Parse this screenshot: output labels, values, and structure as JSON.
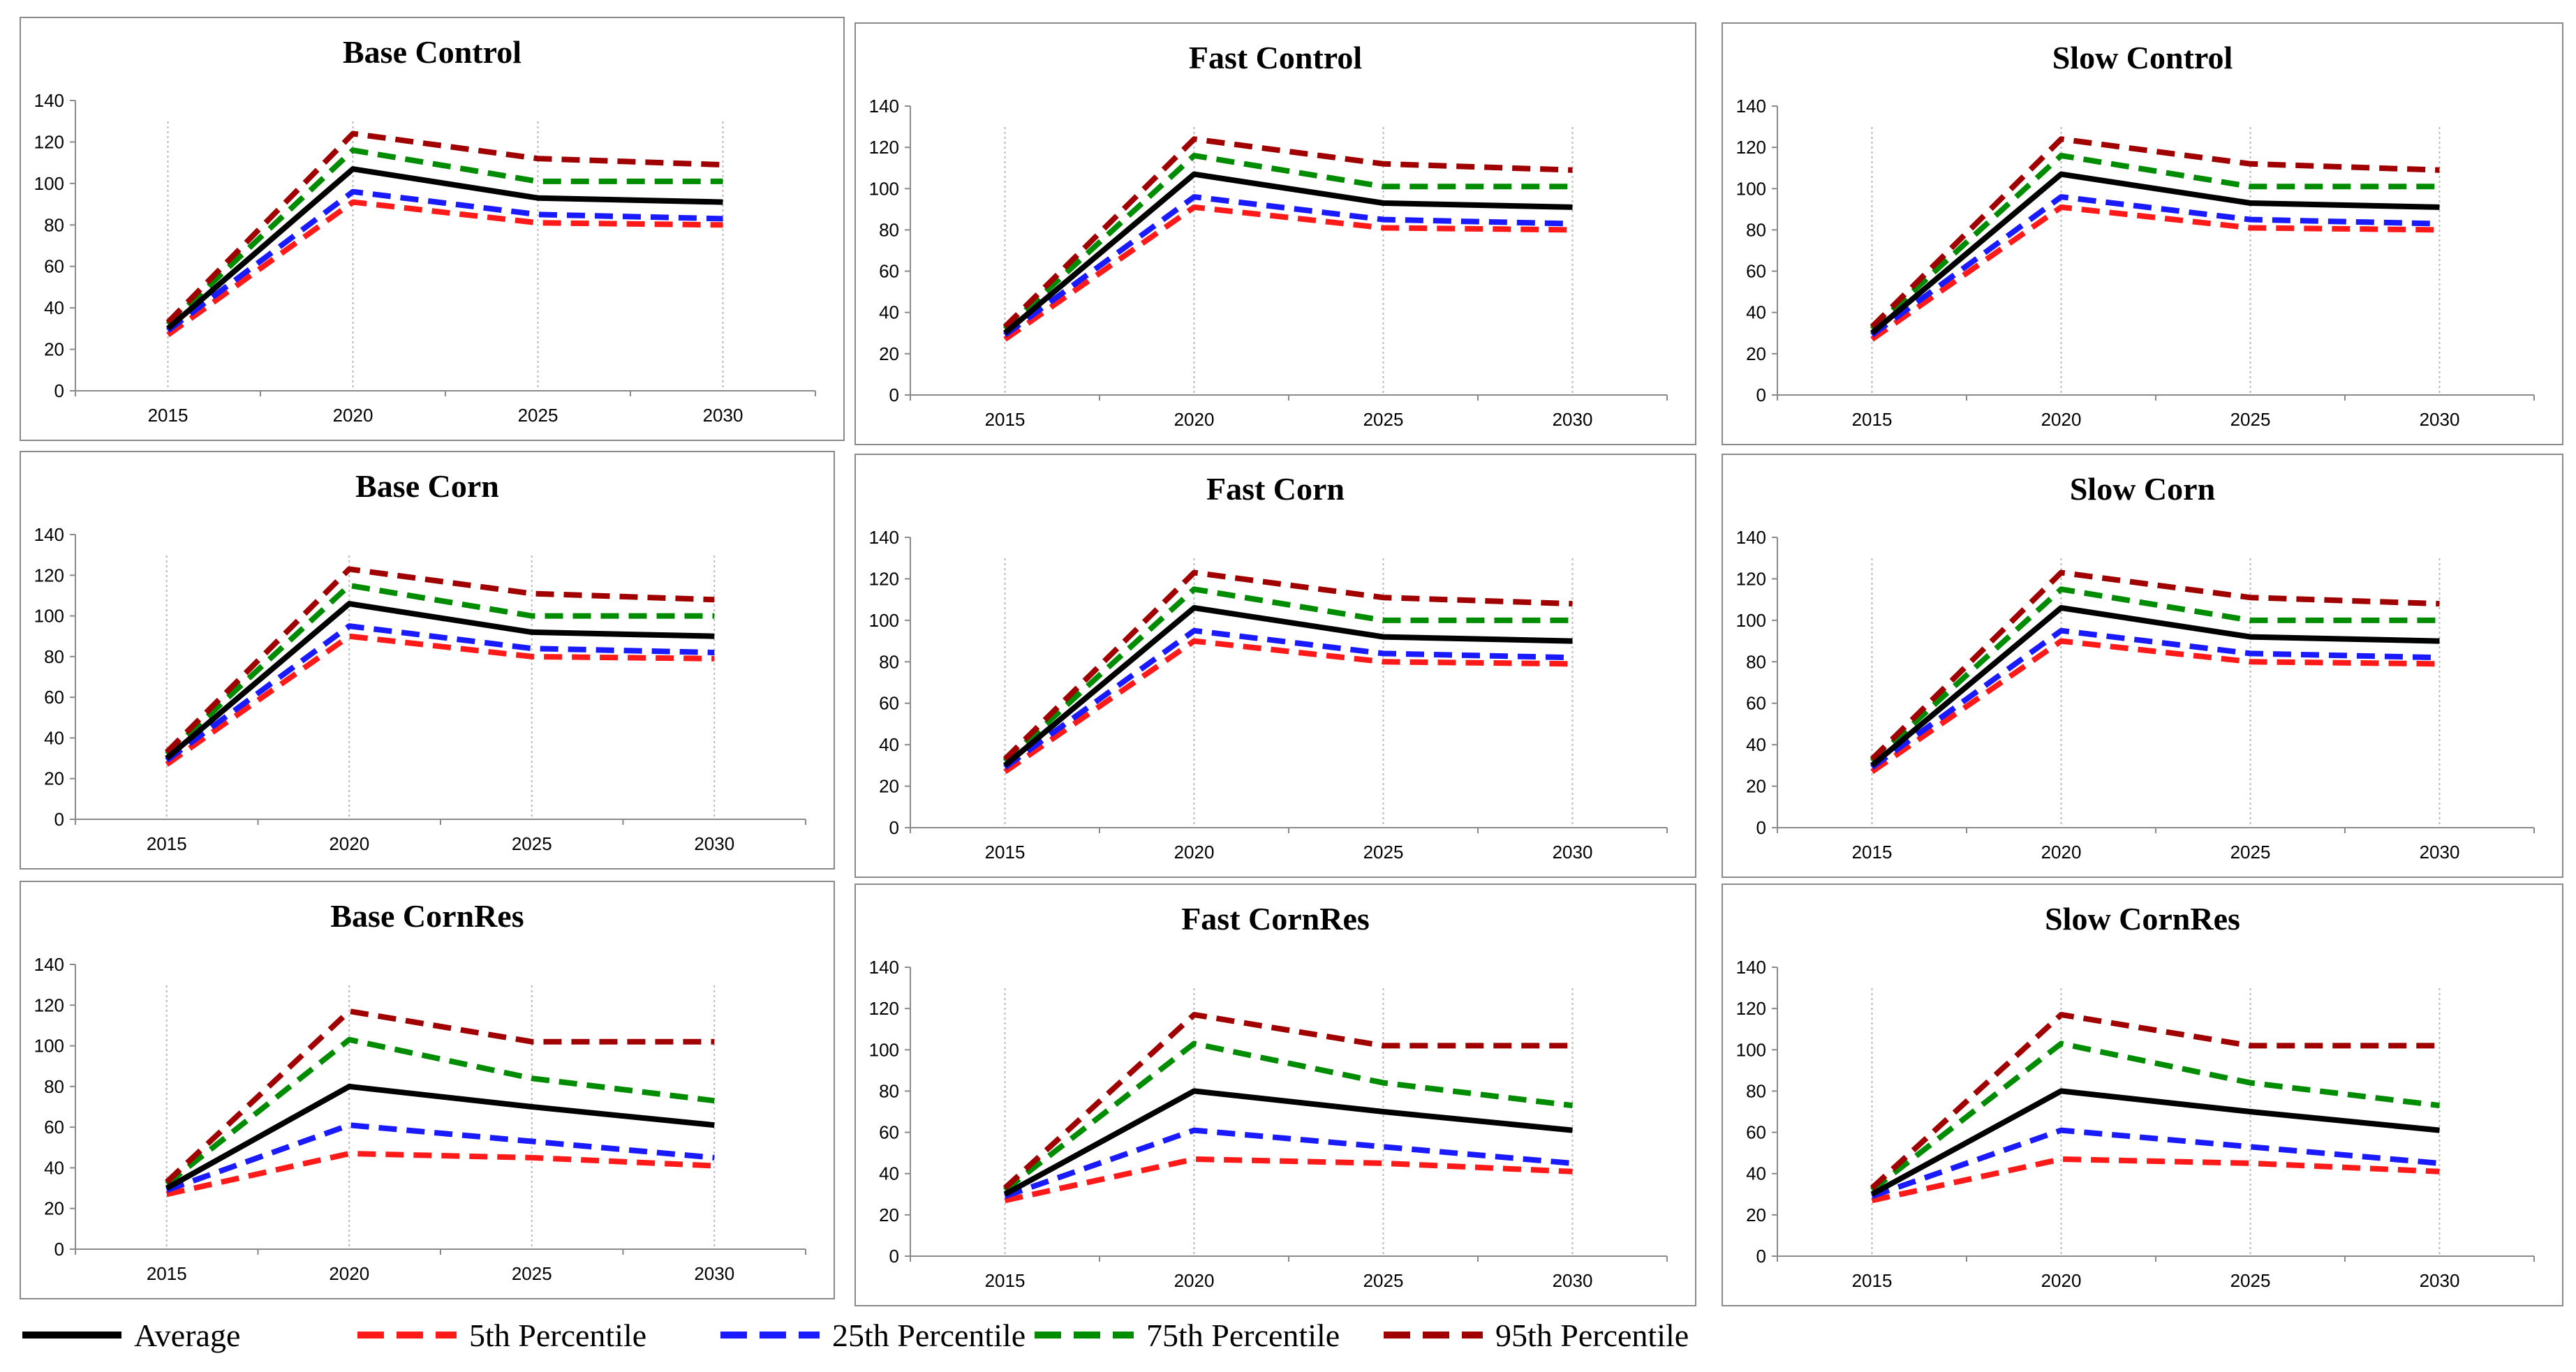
{
  "chart_data": [
    {
      "type": "line",
      "title": "Base Control",
      "x": [
        "2015",
        "2020",
        "2025",
        "2030"
      ],
      "ylim": [
        0,
        140
      ],
      "yticks": [
        0,
        20,
        40,
        60,
        80,
        100,
        120,
        140
      ],
      "series": [
        {
          "name": "Average",
          "values": [
            30,
            107,
            93,
            91
          ]
        },
        {
          "name": "5th Percentile",
          "values": [
            27,
            91,
            81,
            80
          ]
        },
        {
          "name": "25th Percentile",
          "values": [
            29,
            96,
            85,
            83
          ]
        },
        {
          "name": "75th Percentile",
          "values": [
            32,
            116,
            101,
            101
          ]
        },
        {
          "name": "95th Percentile",
          "values": [
            33,
            124,
            112,
            109
          ]
        }
      ]
    },
    {
      "type": "line",
      "title": "Fast Control",
      "x": [
        "2015",
        "2020",
        "2025",
        "2030"
      ],
      "ylim": [
        0,
        140
      ],
      "yticks": [
        0,
        20,
        40,
        60,
        80,
        100,
        120,
        140
      ],
      "series": [
        {
          "name": "Average",
          "values": [
            30,
            107,
            93,
            91
          ]
        },
        {
          "name": "5th Percentile",
          "values": [
            27,
            91,
            81,
            80
          ]
        },
        {
          "name": "25th Percentile",
          "values": [
            29,
            96,
            85,
            83
          ]
        },
        {
          "name": "75th Percentile",
          "values": [
            32,
            116,
            101,
            101
          ]
        },
        {
          "name": "95th Percentile",
          "values": [
            33,
            124,
            112,
            109
          ]
        }
      ]
    },
    {
      "type": "line",
      "title": "Slow Control",
      "x": [
        "2015",
        "2020",
        "2025",
        "2030"
      ],
      "ylim": [
        0,
        140
      ],
      "yticks": [
        0,
        20,
        40,
        60,
        80,
        100,
        120,
        140
      ],
      "series": [
        {
          "name": "Average",
          "values": [
            30,
            107,
            93,
            91
          ]
        },
        {
          "name": "5th Percentile",
          "values": [
            27,
            91,
            81,
            80
          ]
        },
        {
          "name": "25th Percentile",
          "values": [
            29,
            96,
            85,
            83
          ]
        },
        {
          "name": "75th Percentile",
          "values": [
            32,
            116,
            101,
            101
          ]
        },
        {
          "name": "95th Percentile",
          "values": [
            33,
            124,
            112,
            109
          ]
        }
      ]
    },
    {
      "type": "line",
      "title": "Base Corn",
      "x": [
        "2015",
        "2020",
        "2025",
        "2030"
      ],
      "ylim": [
        0,
        140
      ],
      "yticks": [
        0,
        20,
        40,
        60,
        80,
        100,
        120,
        140
      ],
      "series": [
        {
          "name": "Average",
          "values": [
            30,
            106,
            92,
            90
          ]
        },
        {
          "name": "5th Percentile",
          "values": [
            27,
            90,
            80,
            79
          ]
        },
        {
          "name": "25th Percentile",
          "values": [
            29,
            95,
            84,
            82
          ]
        },
        {
          "name": "75th Percentile",
          "values": [
            32,
            115,
            100,
            100
          ]
        },
        {
          "name": "95th Percentile",
          "values": [
            33,
            123,
            111,
            108
          ]
        }
      ]
    },
    {
      "type": "line",
      "title": "Fast Corn",
      "x": [
        "2015",
        "2020",
        "2025",
        "2030"
      ],
      "ylim": [
        0,
        140
      ],
      "yticks": [
        0,
        20,
        40,
        60,
        80,
        100,
        120,
        140
      ],
      "series": [
        {
          "name": "Average",
          "values": [
            30,
            106,
            92,
            90
          ]
        },
        {
          "name": "5th Percentile",
          "values": [
            27,
            90,
            80,
            79
          ]
        },
        {
          "name": "25th Percentile",
          "values": [
            29,
            95,
            84,
            82
          ]
        },
        {
          "name": "75th Percentile",
          "values": [
            32,
            115,
            100,
            100
          ]
        },
        {
          "name": "95th Percentile",
          "values": [
            33,
            123,
            111,
            108
          ]
        }
      ]
    },
    {
      "type": "line",
      "title": "Slow Corn",
      "x": [
        "2015",
        "2020",
        "2025",
        "2030"
      ],
      "ylim": [
        0,
        140
      ],
      "yticks": [
        0,
        20,
        40,
        60,
        80,
        100,
        120,
        140
      ],
      "series": [
        {
          "name": "Average",
          "values": [
            30,
            106,
            92,
            90
          ]
        },
        {
          "name": "5th Percentile",
          "values": [
            27,
            90,
            80,
            79
          ]
        },
        {
          "name": "25th Percentile",
          "values": [
            29,
            95,
            84,
            82
          ]
        },
        {
          "name": "75th Percentile",
          "values": [
            32,
            115,
            100,
            100
          ]
        },
        {
          "name": "95th Percentile",
          "values": [
            33,
            123,
            111,
            108
          ]
        }
      ]
    },
    {
      "type": "line",
      "title": "Base CornRes",
      "x": [
        "2015",
        "2020",
        "2025",
        "2030"
      ],
      "ylim": [
        0,
        140
      ],
      "yticks": [
        0,
        20,
        40,
        60,
        80,
        100,
        120,
        140
      ],
      "series": [
        {
          "name": "Average",
          "values": [
            30,
            80,
            70,
            61
          ]
        },
        {
          "name": "5th Percentile",
          "values": [
            27,
            47,
            45,
            41
          ]
        },
        {
          "name": "25th Percentile",
          "values": [
            29,
            61,
            53,
            45
          ]
        },
        {
          "name": "75th Percentile",
          "values": [
            32,
            103,
            84,
            73
          ]
        },
        {
          "name": "95th Percentile",
          "values": [
            33,
            117,
            102,
            102
          ]
        }
      ]
    },
    {
      "type": "line",
      "title": "Fast CornRes",
      "x": [
        "2015",
        "2020",
        "2025",
        "2030"
      ],
      "ylim": [
        0,
        140
      ],
      "yticks": [
        0,
        20,
        40,
        60,
        80,
        100,
        120,
        140
      ],
      "series": [
        {
          "name": "Average",
          "values": [
            30,
            80,
            70,
            61
          ]
        },
        {
          "name": "5th Percentile",
          "values": [
            27,
            47,
            45,
            41
          ]
        },
        {
          "name": "25th Percentile",
          "values": [
            29,
            61,
            53,
            45
          ]
        },
        {
          "name": "75th Percentile",
          "values": [
            32,
            103,
            84,
            73
          ]
        },
        {
          "name": "95th Percentile",
          "values": [
            33,
            117,
            102,
            102
          ]
        }
      ]
    },
    {
      "type": "line",
      "title": "Slow CornRes",
      "x": [
        "2015",
        "2020",
        "2025",
        "2030"
      ],
      "ylim": [
        0,
        140
      ],
      "yticks": [
        0,
        20,
        40,
        60,
        80,
        100,
        120,
        140
      ],
      "series": [
        {
          "name": "Average",
          "values": [
            30,
            80,
            70,
            61
          ]
        },
        {
          "name": "5th Percentile",
          "values": [
            27,
            47,
            45,
            41
          ]
        },
        {
          "name": "25th Percentile",
          "values": [
            29,
            61,
            53,
            45
          ]
        },
        {
          "name": "75th Percentile",
          "values": [
            32,
            103,
            84,
            73
          ]
        },
        {
          "name": "95th Percentile",
          "values": [
            33,
            117,
            102,
            102
          ]
        }
      ]
    }
  ],
  "legend": {
    "items": [
      {
        "label": "Average",
        "color": "#000000",
        "dashed": false
      },
      {
        "label": "5th Percentile",
        "color": "#ff1a1a",
        "dashed": true
      },
      {
        "label": "25th Percentile",
        "color": "#1a1aff",
        "dashed": true
      },
      {
        "label": "75th Percentile",
        "color": "#008c00",
        "dashed": true
      },
      {
        "label": "95th Percentile",
        "color": "#a00000",
        "dashed": true
      }
    ]
  },
  "series_styles": {
    "Average": {
      "color": "#000000",
      "dashed": false
    },
    "5th Percentile": {
      "color": "#ff1a1a",
      "dashed": true
    },
    "25th Percentile": {
      "color": "#1a1aff",
      "dashed": true
    },
    "75th Percentile": {
      "color": "#008c00",
      "dashed": true
    },
    "95th Percentile": {
      "color": "#a00000",
      "dashed": true
    }
  },
  "draw_order": [
    "5th Percentile",
    "25th Percentile",
    "75th Percentile",
    "95th Percentile",
    "Average"
  ]
}
